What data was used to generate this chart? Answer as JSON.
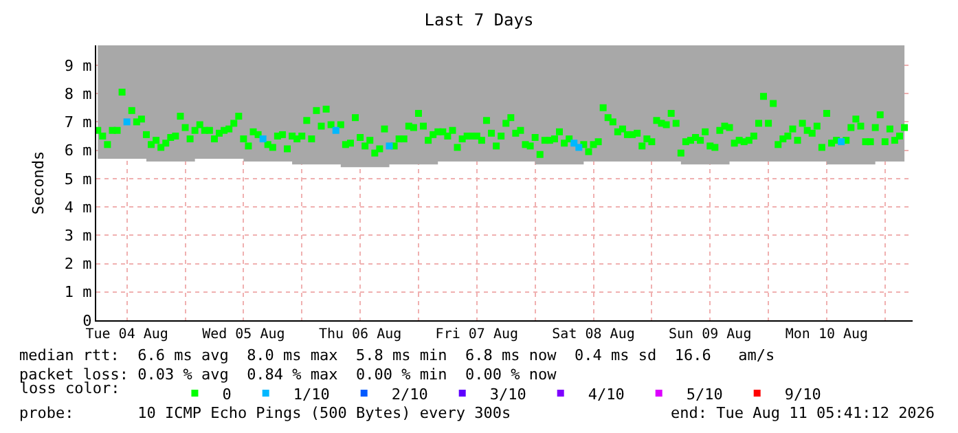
{
  "chart_data": {
    "type": "scatter",
    "title": "Last 7 Days",
    "ylabel": "Seconds",
    "legend_title": "loss color:",
    "legend": "bottom",
    "grid": true,
    "marker": "square",
    "xlim": [
      "2026-08-04T05:41",
      "2026-08-11T05:41"
    ],
    "xticks": [
      {
        "value": "2026-08-04T12:00",
        "label": "Tue 04 Aug"
      },
      {
        "value": "2026-08-05T00:00",
        "label": null
      },
      {
        "value": "2026-08-05T12:00",
        "label": "Wed 05 Aug"
      },
      {
        "value": "2026-08-06T00:00",
        "label": null
      },
      {
        "value": "2026-08-06T12:00",
        "label": "Thu 06 Aug"
      },
      {
        "value": "2026-08-07T00:00",
        "label": null
      },
      {
        "value": "2026-08-07T12:00",
        "label": "Fri 07 Aug"
      },
      {
        "value": "2026-08-08T00:00",
        "label": null
      },
      {
        "value": "2026-08-08T12:00",
        "label": "Sat 08 Aug"
      },
      {
        "value": "2026-08-09T00:00",
        "label": null
      },
      {
        "value": "2026-08-09T12:00",
        "label": "Sun 09 Aug"
      },
      {
        "value": "2026-08-10T00:00",
        "label": null
      },
      {
        "value": "2026-08-10T12:00",
        "label": "Mon 10 Aug"
      },
      {
        "value": "2026-08-11T00:00",
        "label": null
      }
    ],
    "ylim": [
      0,
      9.7
    ],
    "yticks": [
      0,
      {
        "value": 1,
        "label": "1 m"
      },
      {
        "value": 2,
        "label": "2 m"
      },
      {
        "value": 3,
        "label": "3 m"
      },
      {
        "value": 4,
        "label": "4 m"
      },
      {
        "value": 5,
        "label": "5 m"
      },
      {
        "value": 6,
        "label": "6 m"
      },
      {
        "value": 7,
        "label": "7 m"
      },
      {
        "value": 8,
        "label": "8 m"
      },
      {
        "value": 9,
        "label": "9 m"
      }
    ],
    "x": [
      "2026-08-04T06:00",
      "2026-08-04T07:00",
      "2026-08-04T08:00",
      "2026-08-04T09:00",
      "2026-08-04T10:00",
      "2026-08-04T11:00",
      "2026-08-04T12:00",
      "2026-08-04T13:00",
      "2026-08-04T14:00",
      "2026-08-04T15:00",
      "2026-08-04T16:00",
      "2026-08-04T17:00",
      "2026-08-04T18:00",
      "2026-08-04T19:00",
      "2026-08-04T20:00",
      "2026-08-04T21:00",
      "2026-08-04T22:00",
      "2026-08-04T23:00",
      "2026-08-05T00:00",
      "2026-08-05T01:00",
      "2026-08-05T02:00",
      "2026-08-05T03:00",
      "2026-08-05T04:00",
      "2026-08-05T05:00",
      "2026-08-05T06:00",
      "2026-08-05T07:00",
      "2026-08-05T08:00",
      "2026-08-05T09:00",
      "2026-08-05T10:00",
      "2026-08-05T11:00",
      "2026-08-05T12:00",
      "2026-08-05T13:00",
      "2026-08-05T14:00",
      "2026-08-05T15:00",
      "2026-08-05T16:00",
      "2026-08-05T17:00",
      "2026-08-05T18:00",
      "2026-08-05T19:00",
      "2026-08-05T20:00",
      "2026-08-05T21:00",
      "2026-08-05T22:00",
      "2026-08-05T23:00",
      "2026-08-06T00:00",
      "2026-08-06T01:00",
      "2026-08-06T02:00",
      "2026-08-06T03:00",
      "2026-08-06T04:00",
      "2026-08-06T05:00",
      "2026-08-06T06:00",
      "2026-08-06T07:00",
      "2026-08-06T08:00",
      "2026-08-06T09:00",
      "2026-08-06T10:00",
      "2026-08-06T11:00",
      "2026-08-06T12:00",
      "2026-08-06T13:00",
      "2026-08-06T14:00",
      "2026-08-06T15:00",
      "2026-08-06T16:00",
      "2026-08-06T17:00",
      "2026-08-06T18:00",
      "2026-08-06T19:00",
      "2026-08-06T20:00",
      "2026-08-06T21:00",
      "2026-08-06T22:00",
      "2026-08-06T23:00",
      "2026-08-07T00:00",
      "2026-08-07T01:00",
      "2026-08-07T02:00",
      "2026-08-07T03:00",
      "2026-08-07T04:00",
      "2026-08-07T05:00",
      "2026-08-07T06:00",
      "2026-08-07T07:00",
      "2026-08-07T08:00",
      "2026-08-07T09:00",
      "2026-08-07T10:00",
      "2026-08-07T11:00",
      "2026-08-07T12:00",
      "2026-08-07T13:00",
      "2026-08-07T14:00",
      "2026-08-07T15:00",
      "2026-08-07T16:00",
      "2026-08-07T17:00",
      "2026-08-07T18:00",
      "2026-08-07T19:00",
      "2026-08-07T20:00",
      "2026-08-07T21:00",
      "2026-08-07T22:00",
      "2026-08-07T23:00",
      "2026-08-08T00:00",
      "2026-08-08T01:00",
      "2026-08-08T02:00",
      "2026-08-08T03:00",
      "2026-08-08T04:00",
      "2026-08-08T05:00",
      "2026-08-08T06:00",
      "2026-08-08T07:00",
      "2026-08-08T08:00",
      "2026-08-08T09:00",
      "2026-08-08T10:00",
      "2026-08-08T11:00",
      "2026-08-08T12:00",
      "2026-08-08T13:00",
      "2026-08-08T14:00",
      "2026-08-08T15:00",
      "2026-08-08T16:00",
      "2026-08-08T17:00",
      "2026-08-08T18:00",
      "2026-08-08T19:00",
      "2026-08-08T20:00",
      "2026-08-08T21:00",
      "2026-08-08T22:00",
      "2026-08-08T23:00",
      "2026-08-09T00:00",
      "2026-08-09T01:00",
      "2026-08-09T02:00",
      "2026-08-09T03:00",
      "2026-08-09T04:00",
      "2026-08-09T05:00",
      "2026-08-09T06:00",
      "2026-08-09T07:00",
      "2026-08-09T08:00",
      "2026-08-09T09:00",
      "2026-08-09T10:00",
      "2026-08-09T11:00",
      "2026-08-09T12:00",
      "2026-08-09T13:00",
      "2026-08-09T14:00",
      "2026-08-09T15:00",
      "2026-08-09T16:00",
      "2026-08-09T17:00",
      "2026-08-09T18:00",
      "2026-08-09T19:00",
      "2026-08-09T20:00",
      "2026-08-09T21:00",
      "2026-08-09T22:00",
      "2026-08-09T23:00",
      "2026-08-10T00:00",
      "2026-08-10T01:00",
      "2026-08-10T02:00",
      "2026-08-10T03:00",
      "2026-08-10T04:00",
      "2026-08-10T05:00",
      "2026-08-10T06:00",
      "2026-08-10T07:00",
      "2026-08-10T08:00",
      "2026-08-10T09:00",
      "2026-08-10T10:00",
      "2026-08-10T11:00",
      "2026-08-10T12:00",
      "2026-08-10T13:00",
      "2026-08-10T14:00",
      "2026-08-10T15:00",
      "2026-08-10T16:00",
      "2026-08-10T17:00",
      "2026-08-10T18:00",
      "2026-08-10T19:00",
      "2026-08-10T20:00",
      "2026-08-10T21:00",
      "2026-08-10T22:00",
      "2026-08-10T23:00",
      "2026-08-11T00:00",
      "2026-08-11T01:00",
      "2026-08-11T02:00",
      "2026-08-11T03:00",
      "2026-08-11T04:00"
    ],
    "series": [
      {
        "name": "0",
        "color": "#00ff00",
        "values": [
          6.7,
          6.5,
          6.2,
          6.7,
          6.7,
          8.05,
          null,
          7.4,
          7.0,
          7.1,
          6.55,
          6.2,
          6.35,
          6.1,
          6.25,
          6.45,
          6.5,
          7.2,
          6.8,
          6.4,
          6.7,
          6.9,
          6.7,
          6.7,
          6.4,
          6.6,
          6.7,
          6.75,
          6.95,
          7.2,
          6.4,
          6.15,
          6.65,
          6.55,
          null,
          6.2,
          6.1,
          6.5,
          6.55,
          6.05,
          6.5,
          6.4,
          6.5,
          7.05,
          6.4,
          7.4,
          6.85,
          7.45,
          6.9,
          null,
          6.9,
          6.2,
          6.25,
          7.15,
          6.45,
          6.15,
          6.35,
          5.9,
          6.05,
          6.75,
          null,
          6.15,
          6.4,
          6.4,
          6.85,
          6.8,
          7.3,
          6.85,
          6.35,
          6.55,
          6.65,
          6.65,
          6.5,
          6.7,
          6.1,
          6.4,
          6.5,
          6.5,
          6.5,
          6.35,
          7.05,
          6.6,
          6.15,
          6.5,
          6.95,
          7.15,
          6.6,
          6.7,
          6.2,
          6.15,
          6.45,
          5.85,
          6.35,
          6.35,
          6.4,
          6.65,
          6.25,
          6.4,
          null,
          null,
          6.2,
          5.95,
          6.2,
          6.3,
          7.5,
          7.15,
          7.0,
          6.65,
          6.75,
          6.55,
          6.55,
          6.6,
          6.15,
          6.4,
          6.3,
          7.05,
          6.95,
          6.9,
          7.3,
          6.95,
          5.9,
          6.3,
          6.35,
          6.45,
          6.35,
          6.65,
          6.15,
          6.1,
          6.7,
          6.85,
          6.8,
          6.25,
          6.35,
          6.3,
          6.35,
          6.5,
          6.95,
          7.9,
          6.95,
          7.65,
          6.2,
          6.4,
          6.5,
          6.75,
          6.35,
          6.95,
          6.7,
          6.6,
          6.85,
          6.1,
          7.3,
          6.25,
          6.35,
          null,
          6.35,
          6.8,
          7.1,
          6.85,
          6.3,
          6.3,
          6.8,
          7.25,
          6.3,
          6.75,
          6.35,
          6.5,
          6.8
        ],
        "lower": [
          5.7,
          5.7,
          5.7,
          5.7,
          5.7,
          5.7,
          5.7,
          5.7,
          5.7,
          5.7,
          5.6,
          5.6,
          5.6,
          5.6,
          5.6,
          5.6,
          5.6,
          5.6,
          5.6,
          5.6,
          5.7,
          5.7,
          5.7,
          5.7,
          5.7,
          5.7,
          5.7,
          5.7,
          5.7,
          5.7,
          5.6,
          5.6,
          5.6,
          5.6,
          5.6,
          5.6,
          5.6,
          5.6,
          5.6,
          5.6,
          5.5,
          5.5,
          5.5,
          5.5,
          5.5,
          5.5,
          5.5,
          5.5,
          5.5,
          5.5,
          5.4,
          5.4,
          5.4,
          5.4,
          5.4,
          5.4,
          5.4,
          5.4,
          5.4,
          5.4,
          5.5,
          5.5,
          5.5,
          5.5,
          5.5,
          5.5,
          5.5,
          5.5,
          5.5,
          5.5,
          5.6,
          5.6,
          5.6,
          5.6,
          5.6,
          5.6,
          5.6,
          5.6,
          5.6,
          5.6,
          5.6,
          5.6,
          5.6,
          5.6,
          5.6,
          5.6,
          5.6,
          5.6,
          5.6,
          5.6,
          5.5,
          5.5,
          5.5,
          5.5,
          5.5,
          5.5,
          5.5,
          5.5,
          5.5,
          5.5,
          5.6,
          5.6,
          5.6,
          5.6,
          5.6,
          5.6,
          5.6,
          5.6,
          5.6,
          5.6,
          5.6,
          5.6,
          5.6,
          5.6,
          5.6,
          5.6,
          5.6,
          5.6,
          5.6,
          5.6,
          5.5,
          5.5,
          5.5,
          5.5,
          5.5,
          5.5,
          5.5,
          5.5,
          5.5,
          5.5,
          5.6,
          5.6,
          5.6,
          5.6,
          5.6,
          5.6,
          5.6,
          5.6,
          5.6,
          5.6,
          5.6,
          5.6,
          5.6,
          5.6,
          5.6,
          5.6,
          5.6,
          5.6,
          5.6,
          5.6,
          5.5,
          5.5,
          5.5,
          5.5,
          5.5,
          5.5,
          5.5,
          5.5,
          5.5,
          5.5,
          5.6,
          5.6,
          5.6,
          5.6,
          5.6,
          5.6,
          5.6
        ],
        "upper": [
          9.7,
          9.7,
          9.7,
          9.7,
          9.7,
          9.7,
          9.7,
          9.7,
          9.7,
          9.7,
          9.7,
          9.7,
          9.7,
          9.7,
          9.7,
          9.7,
          9.7,
          9.7,
          9.7,
          9.7,
          9.7,
          9.7,
          9.7,
          9.7,
          9.7,
          9.7,
          9.7,
          9.7,
          9.7,
          9.7,
          9.7,
          9.7,
          9.7,
          9.7,
          9.7,
          9.7,
          9.7,
          9.7,
          9.7,
          9.7,
          9.7,
          9.7,
          9.7,
          9.7,
          9.7,
          9.7,
          9.7,
          9.7,
          9.7,
          9.7,
          9.7,
          9.7,
          9.7,
          9.7,
          9.7,
          9.7,
          9.7,
          9.7,
          9.7,
          9.7,
          9.7,
          9.7,
          9.7,
          9.7,
          9.7,
          9.7,
          9.7,
          9.7,
          9.7,
          9.7,
          9.7,
          9.7,
          9.7,
          9.7,
          9.7,
          9.7,
          9.7,
          9.7,
          9.7,
          9.7,
          9.7,
          9.7,
          9.7,
          9.7,
          9.7,
          9.7,
          9.7,
          9.7,
          9.7,
          9.7,
          9.7,
          9.7,
          9.7,
          9.7,
          9.7,
          9.7,
          9.7,
          9.7,
          9.7,
          9.7,
          9.7,
          9.7,
          9.7,
          9.7,
          9.7,
          9.7,
          9.7,
          9.7,
          9.7,
          9.7,
          9.7,
          9.7,
          9.7,
          9.7,
          9.7,
          9.7,
          9.7,
          9.7,
          9.7,
          9.7,
          9.7,
          9.7,
          9.7,
          9.7,
          9.7,
          9.7,
          9.7,
          9.7,
          9.7,
          9.7,
          9.7,
          9.7,
          9.7,
          9.7,
          9.7,
          9.7,
          9.7,
          9.7,
          9.7,
          9.7,
          9.7,
          9.7,
          9.7,
          9.7,
          9.7,
          9.7,
          9.7,
          9.7,
          9.7,
          9.7,
          9.7,
          9.7,
          9.7,
          9.7,
          9.7,
          9.7,
          9.7,
          9.7,
          9.7,
          9.7,
          9.7,
          9.7,
          9.7,
          9.7,
          9.7,
          9.7,
          9.7
        ]
      },
      {
        "name": "1/10",
        "color": "#00b8ff",
        "values": [
          null,
          null,
          null,
          null,
          null,
          null,
          7.0,
          null,
          null,
          null,
          null,
          null,
          null,
          null,
          null,
          null,
          null,
          null,
          null,
          null,
          null,
          null,
          null,
          null,
          null,
          null,
          null,
          null,
          null,
          null,
          null,
          null,
          null,
          null,
          6.4,
          null,
          null,
          null,
          null,
          null,
          null,
          null,
          null,
          null,
          null,
          null,
          null,
          null,
          null,
          6.7,
          null,
          null,
          null,
          null,
          null,
          null,
          null,
          null,
          null,
          null,
          6.15,
          null,
          null,
          null,
          null,
          null,
          null,
          null,
          null,
          null,
          null,
          null,
          null,
          null,
          null,
          null,
          null,
          null,
          null,
          null,
          null,
          null,
          null,
          null,
          null,
          null,
          null,
          null,
          null,
          null,
          null,
          null,
          null,
          null,
          null,
          null,
          null,
          null,
          6.25,
          6.1,
          null,
          null,
          null,
          null,
          null,
          null,
          null,
          null,
          null,
          null,
          null,
          null,
          null,
          null,
          null,
          null,
          null,
          null,
          null,
          null,
          null,
          null,
          null,
          null,
          null,
          null,
          null,
          null,
          null,
          null,
          null,
          null,
          null,
          null,
          null,
          null,
          null,
          null,
          null,
          null,
          null,
          null,
          null,
          null,
          null,
          null,
          null,
          null,
          null,
          null,
          null,
          null,
          null,
          6.3,
          null,
          null,
          null,
          null,
          null,
          null,
          null,
          null,
          null,
          null,
          null,
          null,
          null
        ]
      },
      {
        "name": "2/10",
        "color": "#0059ff",
        "values": [
          null,
          null,
          null,
          null,
          null,
          null,
          null,
          null,
          null,
          null,
          null,
          null,
          null,
          null,
          null,
          null,
          null,
          null,
          null,
          null,
          null,
          null,
          null,
          null,
          null,
          null,
          null,
          null,
          null,
          null,
          null,
          null,
          null,
          null,
          null,
          null,
          null,
          null,
          null,
          null,
          null,
          null,
          null,
          null,
          null,
          null,
          null,
          null,
          null,
          null,
          null,
          null,
          null,
          null,
          null,
          null,
          null,
          null,
          null,
          null,
          null,
          null,
          null,
          null,
          null,
          null,
          null,
          null,
          null,
          null,
          null,
          null,
          null,
          null,
          null,
          null,
          null,
          null,
          null,
          null,
          null,
          null,
          null,
          null,
          null,
          null,
          null,
          null,
          null,
          null,
          null,
          null,
          null,
          null,
          null,
          null,
          null,
          null,
          null,
          null,
          null,
          null,
          null,
          null,
          null,
          null,
          null,
          null,
          null,
          null,
          null,
          null,
          null,
          null,
          null,
          null,
          null,
          null,
          null,
          null,
          null,
          null,
          null,
          null,
          null,
          null,
          null,
          null,
          null,
          null,
          null,
          null,
          null,
          null,
          null,
          null,
          null,
          null,
          null,
          null,
          null,
          null,
          null,
          null,
          null,
          null,
          null,
          null,
          null,
          null,
          null,
          null,
          null,
          null,
          null,
          null,
          null,
          null,
          null,
          null,
          null,
          null,
          null,
          null,
          null,
          null,
          null
        ]
      },
      {
        "name": "3/10",
        "color": "#5e00ff",
        "values": [
          null,
          null,
          null,
          null,
          null,
          null,
          null,
          null,
          null,
          null,
          null,
          null,
          null,
          null,
          null,
          null,
          null,
          null,
          null,
          null,
          null,
          null,
          null,
          null,
          null,
          null,
          null,
          null,
          null,
          null,
          null,
          null,
          null,
          null,
          null,
          null,
          null,
          null,
          null,
          null,
          null,
          null,
          null,
          null,
          null,
          null,
          null,
          null,
          null,
          null,
          null,
          null,
          null,
          null,
          null,
          null,
          null,
          null,
          null,
          null,
          null,
          null,
          null,
          null,
          null,
          null,
          null,
          null,
          null,
          null,
          null,
          null,
          null,
          null,
          null,
          null,
          null,
          null,
          null,
          null,
          null,
          null,
          null,
          null,
          null,
          null,
          null,
          null,
          null,
          null,
          null,
          null,
          null,
          null,
          null,
          null,
          null,
          null,
          null,
          null,
          null,
          null,
          null,
          null,
          null,
          null,
          null,
          null,
          null,
          null,
          null,
          null,
          null,
          null,
          null,
          null,
          null,
          null,
          null,
          null,
          null,
          null,
          null,
          null,
          null,
          null,
          null,
          null,
          null,
          null,
          null,
          null,
          null,
          null,
          null,
          null,
          null,
          null,
          null,
          null,
          null,
          null,
          null,
          null,
          null,
          null,
          null,
          null,
          null,
          null,
          null,
          null,
          null,
          null,
          null,
          null,
          null,
          null,
          null,
          null,
          null,
          null,
          null,
          null,
          null,
          null,
          null
        ]
      },
      {
        "name": "4/10",
        "color": "#7e00ff",
        "values": [
          null,
          null,
          null,
          null,
          null,
          null,
          null,
          null,
          null,
          null,
          null,
          null,
          null,
          null,
          null,
          null,
          null,
          null,
          null,
          null,
          null,
          null,
          null,
          null,
          null,
          null,
          null,
          null,
          null,
          null,
          null,
          null,
          null,
          null,
          null,
          null,
          null,
          null,
          null,
          null,
          null,
          null,
          null,
          null,
          null,
          null,
          null,
          null,
          null,
          null,
          null,
          null,
          null,
          null,
          null,
          null,
          null,
          null,
          null,
          null,
          null,
          null,
          null,
          null,
          null,
          null,
          null,
          null,
          null,
          null,
          null,
          null,
          null,
          null,
          null,
          null,
          null,
          null,
          null,
          null,
          null,
          null,
          null,
          null,
          null,
          null,
          null,
          null,
          null,
          null,
          null,
          null,
          null,
          null,
          null,
          null,
          null,
          null,
          null,
          null,
          null,
          null,
          null,
          null,
          null,
          null,
          null,
          null,
          null,
          null,
          null,
          null,
          null,
          null,
          null,
          null,
          null,
          null,
          null,
          null,
          null,
          null,
          null,
          null,
          null,
          null,
          null,
          null,
          null,
          null,
          null,
          null,
          null,
          null,
          null,
          null,
          null,
          null,
          null,
          null,
          null,
          null,
          null,
          null,
          null,
          null,
          null,
          null,
          null,
          null,
          null,
          null,
          null,
          null,
          null,
          null,
          null,
          null,
          null,
          null,
          null,
          null,
          null,
          null,
          null,
          null,
          null
        ]
      },
      {
        "name": "5/10",
        "color": "#dd00ff",
        "values": [
          null,
          null,
          null,
          null,
          null,
          null,
          null,
          null,
          null,
          null,
          null,
          null,
          null,
          null,
          null,
          null,
          null,
          null,
          null,
          null,
          null,
          null,
          null,
          null,
          null,
          null,
          null,
          null,
          null,
          null,
          null,
          null,
          null,
          null,
          null,
          null,
          null,
          null,
          null,
          null,
          null,
          null,
          null,
          null,
          null,
          null,
          null,
          null,
          null,
          null,
          null,
          null,
          null,
          null,
          null,
          null,
          null,
          null,
          null,
          null,
          null,
          null,
          null,
          null,
          null,
          null,
          null,
          null,
          null,
          null,
          null,
          null,
          null,
          null,
          null,
          null,
          null,
          null,
          null,
          null,
          null,
          null,
          null,
          null,
          null,
          null,
          null,
          null,
          null,
          null,
          null,
          null,
          null,
          null,
          null,
          null,
          null,
          null,
          null,
          null,
          null,
          null,
          null,
          null,
          null,
          null,
          null,
          null,
          null,
          null,
          null,
          null,
          null,
          null,
          null,
          null,
          null,
          null,
          null,
          null,
          null,
          null,
          null,
          null,
          null,
          null,
          null,
          null,
          null,
          null,
          null,
          null,
          null,
          null,
          null,
          null,
          null,
          null,
          null,
          null,
          null,
          null,
          null,
          null,
          null,
          null,
          null,
          null,
          null,
          null,
          null,
          null,
          null,
          null,
          null,
          null,
          null,
          null,
          null,
          null,
          null,
          null,
          null,
          null,
          null,
          null,
          null
        ]
      },
      {
        "name": "9/10",
        "color": "#ff0000",
        "values": [
          null,
          null,
          null,
          null,
          null,
          null,
          null,
          null,
          null,
          null,
          null,
          null,
          null,
          null,
          null,
          null,
          null,
          null,
          null,
          null,
          null,
          null,
          null,
          null,
          null,
          null,
          null,
          null,
          null,
          null,
          null,
          null,
          null,
          null,
          null,
          null,
          null,
          null,
          null,
          null,
          null,
          null,
          null,
          null,
          null,
          null,
          null,
          null,
          null,
          null,
          null,
          null,
          null,
          null,
          null,
          null,
          null,
          null,
          null,
          null,
          null,
          null,
          null,
          null,
          null,
          null,
          null,
          null,
          null,
          null,
          null,
          null,
          null,
          null,
          null,
          null,
          null,
          null,
          null,
          null,
          null,
          null,
          null,
          null,
          null,
          null,
          null,
          null,
          null,
          null,
          null,
          null,
          null,
          null,
          null,
          null,
          null,
          null,
          null,
          null,
          null,
          null,
          null,
          null,
          null,
          null,
          null,
          null,
          null,
          null,
          null,
          null,
          null,
          null,
          null,
          null,
          null,
          null,
          null,
          null,
          null,
          null,
          null,
          null,
          null,
          null,
          null,
          null,
          null,
          null,
          null,
          null,
          null,
          null,
          null,
          null,
          null,
          null,
          null,
          null,
          null,
          null,
          null,
          null,
          null,
          null,
          null,
          null,
          null,
          null,
          null,
          null,
          null,
          null,
          null,
          null,
          null,
          null,
          null,
          null,
          null,
          null,
          null,
          null,
          null,
          null,
          null
        ]
      }
    ],
    "annotations": [
      "median rtt:  6.6 ms avg  8.0 ms max  5.8 ms min  6.8 ms now  0.4 ms sd  16.6   am/s",
      "packet loss: 0.03 % avg  0.84 % max  0.00 % min  0.00 % now",
      "probe:       10 ICMP Echo Pings (500 Bytes) every 300s",
      "end: Tue Aug 11 05:41:12 2026"
    ]
  }
}
